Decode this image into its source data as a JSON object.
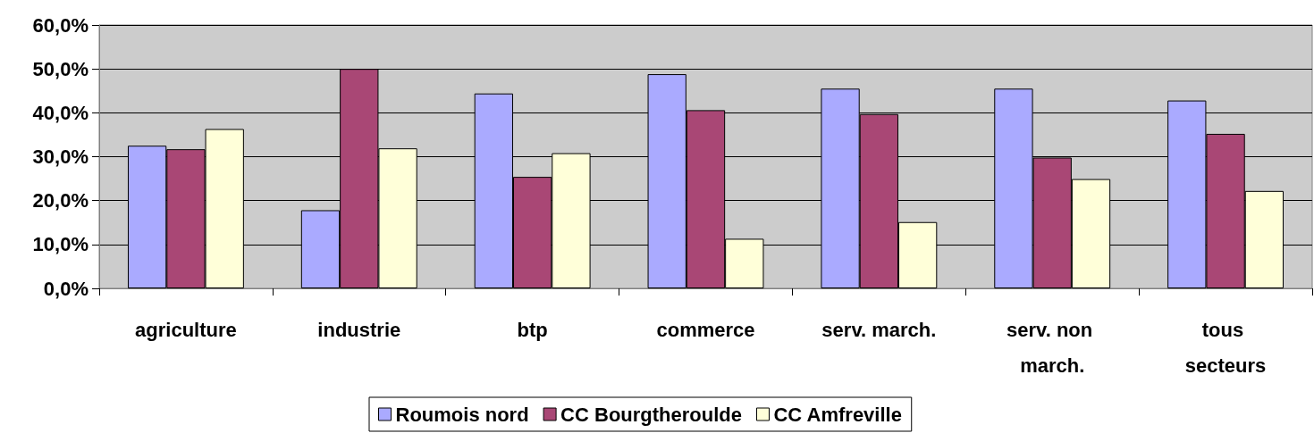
{
  "chart_data": {
    "type": "bar",
    "categories": [
      "agriculture",
      "industrie",
      "btp",
      "commerce",
      "serv. march.",
      "serv. non march.",
      "tous secteurs"
    ],
    "series": [
      {
        "name": "Roumois nord",
        "color": "#aaaaff",
        "values": [
          32.5,
          17.8,
          44.4,
          48.8,
          45.5,
          45.5,
          42.8
        ]
      },
      {
        "name": "CC Bourgtheroulde",
        "color": "#a94775",
        "values": [
          31.7,
          50.0,
          25.4,
          40.6,
          39.7,
          29.8,
          35.2
        ]
      },
      {
        "name": "CC Amfreville",
        "color": "#ffffd9",
        "values": [
          36.3,
          31.9,
          30.8,
          11.3,
          15.1,
          24.9,
          22.2
        ]
      }
    ],
    "ylim": [
      0,
      60
    ],
    "yticks": [
      {
        "value": 0,
        "label": "0,0%"
      },
      {
        "value": 10,
        "label": "10,0%"
      },
      {
        "value": 20,
        "label": "20,0%"
      },
      {
        "value": 30,
        "label": "30,0%"
      },
      {
        "value": 40,
        "label": "40,0%"
      },
      {
        "value": 50,
        "label": "50,0%"
      },
      {
        "value": 60,
        "label": "60,0%"
      }
    ],
    "grid": "y",
    "legend": "bottom"
  }
}
